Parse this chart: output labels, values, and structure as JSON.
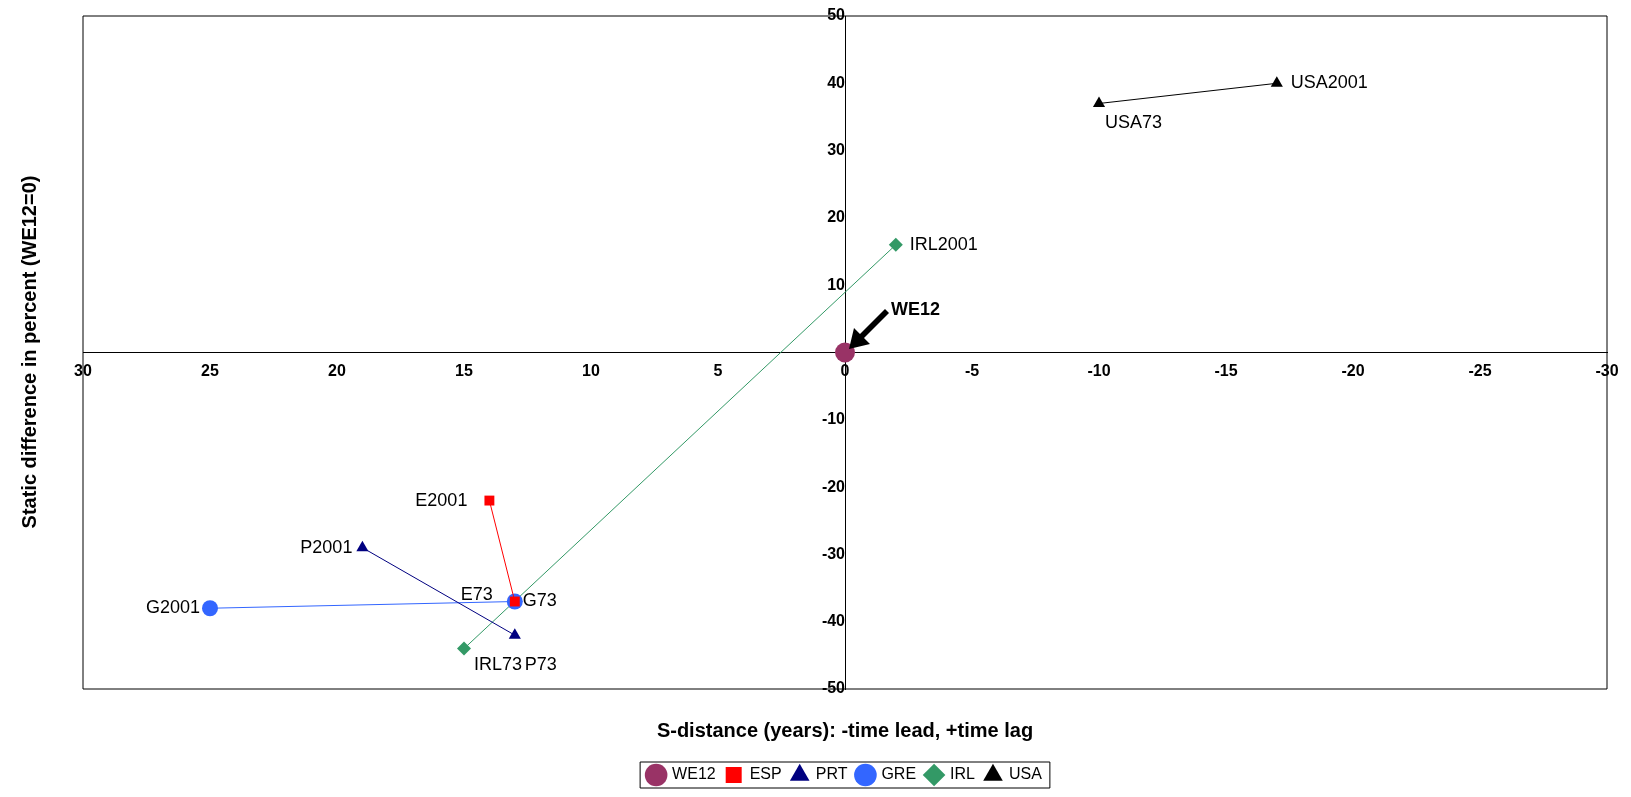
{
  "chart_data": {
    "type": "line",
    "xlabel": "S-distance (years): -time lead, +time lag",
    "ylabel": "Static difference in percent (WE12=0)",
    "xlim": [
      30,
      -30
    ],
    "xticks": [
      30,
      25,
      20,
      15,
      10,
      5,
      0,
      -5,
      -10,
      -15,
      -20,
      -25,
      -30
    ],
    "ylim": [
      -50,
      50
    ],
    "yticks": [
      -50,
      -40,
      -30,
      -20,
      -10,
      10,
      20,
      30,
      40,
      50
    ],
    "grid": false,
    "legend": "bottom",
    "series": [
      {
        "name": "WE12",
        "color": "#993366",
        "marker": "circle",
        "x": [
          0
        ],
        "values": [
          0
        ]
      },
      {
        "name": "ESP",
        "color": "#ff0000",
        "marker": "square",
        "x": [
          13,
          14
        ],
        "values": [
          -37,
          -22
        ]
      },
      {
        "name": "PRT",
        "color": "#000080",
        "marker": "triangle",
        "x": [
          13,
          19
        ],
        "values": [
          -42,
          -29
        ]
      },
      {
        "name": "GRE",
        "color": "#3366ff",
        "marker": "circle",
        "x": [
          13,
          25
        ],
        "values": [
          -37,
          -38
        ]
      },
      {
        "name": "IRL",
        "color": "#339966",
        "marker": "diamond",
        "x": [
          15,
          -2
        ],
        "values": [
          -44,
          16
        ]
      },
      {
        "name": "USA",
        "color": "#000000",
        "marker": "triangle",
        "x": [
          -10,
          -17
        ],
        "values": [
          37,
          40
        ]
      }
    ],
    "annotations": [
      "WE12",
      {
        "text": "E73",
        "x": 13,
        "y": -37
      },
      {
        "text": "E2001",
        "x": 14,
        "y": -22
      },
      {
        "text": "P73",
        "x": 13,
        "y": -42
      },
      {
        "text": "P2001",
        "x": 19,
        "y": -29
      },
      {
        "text": "G73",
        "x": 13,
        "y": -37
      },
      {
        "text": "G2001",
        "x": 25,
        "y": -38
      },
      {
        "text": "IRL73",
        "x": 15,
        "y": -44
      },
      {
        "text": "IRL2001",
        "x": -2,
        "y": 16
      },
      {
        "text": "USA73",
        "x": -10,
        "y": 37
      },
      {
        "text": "USA2001",
        "x": -17,
        "y": 40
      }
    ]
  }
}
